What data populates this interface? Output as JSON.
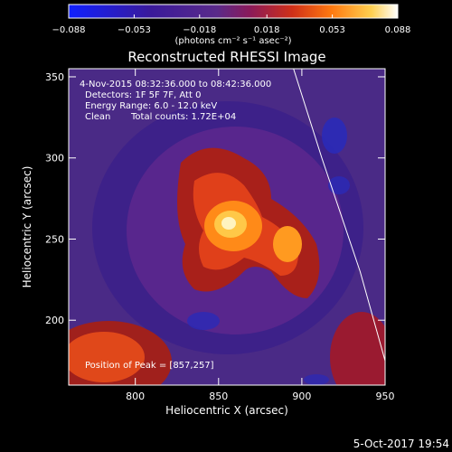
{
  "chart_data": {
    "type": "heatmap",
    "title": "Reconstructed RHESSI Image",
    "xlabel": "Heliocentric X (arcsec)",
    "ylabel": "Heliocentric Y (arcsec)",
    "xlim": [
      760,
      950
    ],
    "ylim": [
      160,
      355
    ],
    "x_ticks": [
      800,
      850,
      900,
      950
    ],
    "y_ticks": [
      200,
      250,
      300,
      350
    ],
    "colorbar": {
      "min": -0.088,
      "max": 0.088,
      "ticks": [
        -0.088,
        -0.053,
        -0.018,
        0.018,
        0.053,
        0.088
      ],
      "tick_labels": [
        "−0.088",
        "−0.053",
        "−0.018",
        "0.018",
        "0.053",
        "0.088"
      ],
      "unit_label": "(photons cm⁻² s⁻¹ asec⁻²)",
      "colors": [
        "#1020ff",
        "#3a1a9a",
        "#4a2a8a",
        "#6a2a8a",
        "#b0182a",
        "#e03a10",
        "#ff8a10",
        "#ffd060",
        "#ffffff"
      ]
    },
    "annotations": {
      "time": "4-Nov-2015 08:32:36.000 to 08:42:36.000",
      "detectors": "Detectors: 1F 5F 7F, Att 0",
      "energy": "Energy Range: 6.0 - 12.0 keV",
      "method": "Clean",
      "counts": "Total counts: 1.72E+04",
      "peak": "Position of Peak = [857,257]"
    },
    "peak": {
      "x": 857,
      "y": 257
    },
    "limb_line": {
      "x": [
        895,
        912,
        935,
        950
      ],
      "y": [
        355,
        300,
        230,
        175
      ]
    }
  },
  "footer": {
    "date": "5-Oct-2017 19:54"
  }
}
